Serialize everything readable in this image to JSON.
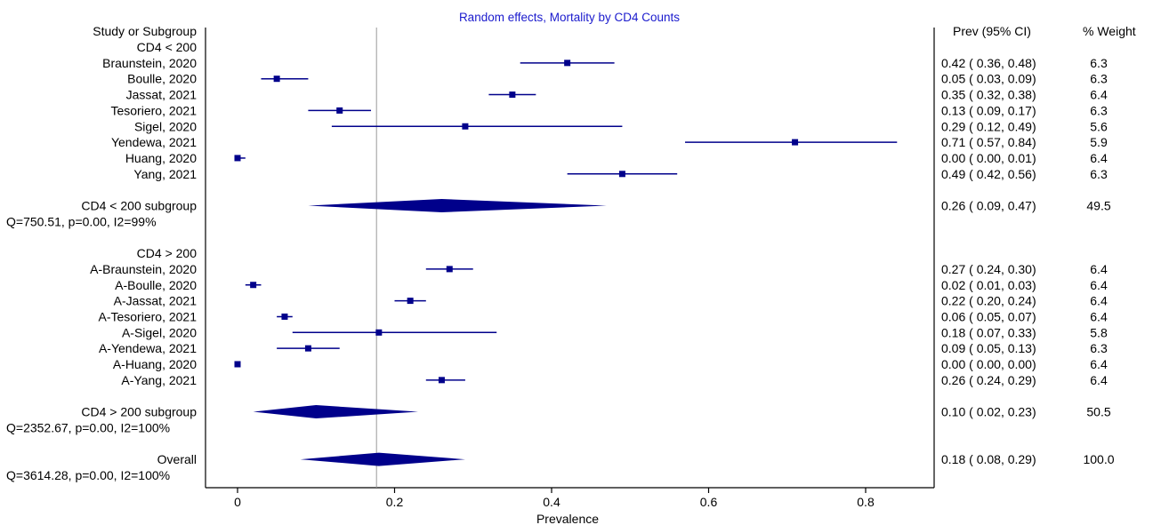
{
  "chart_data": {
    "type": "forest",
    "title": "Random effects, Mortality by CD4 Counts",
    "xlabel": "Prevalence",
    "xlim": [
      -0.04,
      0.88
    ],
    "xticks": [
      0,
      0.2,
      0.4,
      0.6,
      0.8
    ],
    "xtick_labels": [
      "0",
      "0.2",
      "0.4",
      "0.6",
      "0.8"
    ],
    "reference_line": 0.177,
    "columns": {
      "study": "Study or Subgroup",
      "estimate": "Prev (95% CI)",
      "weight": "% Weight"
    },
    "colors": {
      "marker": "#00008B",
      "title": "#1a1acd",
      "text": "#000000",
      "axis": "#000000",
      "refline": "#999999"
    },
    "rows": [
      {
        "kind": "group",
        "label": "CD4 < 200"
      },
      {
        "kind": "study",
        "label": "Braunstein, 2020",
        "est": 0.42,
        "lo": 0.36,
        "hi": 0.48,
        "ci_text": "0.42 ( 0.36, 0.48)",
        "weight": "6.3"
      },
      {
        "kind": "study",
        "label": "Boulle, 2020",
        "est": 0.05,
        "lo": 0.03,
        "hi": 0.09,
        "ci_text": "0.05 ( 0.03, 0.09)",
        "weight": "6.3"
      },
      {
        "kind": "study",
        "label": "Jassat, 2021",
        "est": 0.35,
        "lo": 0.32,
        "hi": 0.38,
        "ci_text": "0.35 ( 0.32, 0.38)",
        "weight": "6.4"
      },
      {
        "kind": "study",
        "label": "Tesoriero, 2021",
        "est": 0.13,
        "lo": 0.09,
        "hi": 0.17,
        "ci_text": "0.13 ( 0.09, 0.17)",
        "weight": "6.3"
      },
      {
        "kind": "study",
        "label": "Sigel, 2020",
        "est": 0.29,
        "lo": 0.12,
        "hi": 0.49,
        "ci_text": "0.29 ( 0.12, 0.49)",
        "weight": "5.6"
      },
      {
        "kind": "study",
        "label": "Yendewa, 2021",
        "est": 0.71,
        "lo": 0.57,
        "hi": 0.84,
        "ci_text": "0.71 ( 0.57, 0.84)",
        "weight": "5.9"
      },
      {
        "kind": "study",
        "label": "Huang, 2020",
        "est": 0.0,
        "lo": 0.0,
        "hi": 0.01,
        "ci_text": "0.00 ( 0.00, 0.01)",
        "weight": "6.4"
      },
      {
        "kind": "study",
        "label": "Yang, 2021",
        "est": 0.49,
        "lo": 0.42,
        "hi": 0.56,
        "ci_text": "0.49 ( 0.42, 0.56)",
        "weight": "6.3"
      },
      {
        "kind": "blank"
      },
      {
        "kind": "summary",
        "label": "CD4 < 200 subgroup",
        "est": 0.26,
        "lo": 0.09,
        "hi": 0.47,
        "ci_text": "0.26 ( 0.09, 0.47)",
        "weight": "49.5"
      },
      {
        "kind": "stat",
        "label": "Q=750.51, p=0.00, I2=99%"
      },
      {
        "kind": "blank"
      },
      {
        "kind": "group",
        "label": "CD4 > 200"
      },
      {
        "kind": "study",
        "label": "A-Braunstein, 2020",
        "est": 0.27,
        "lo": 0.24,
        "hi": 0.3,
        "ci_text": "0.27 ( 0.24, 0.30)",
        "weight": "6.4"
      },
      {
        "kind": "study",
        "label": "A-Boulle, 2020",
        "est": 0.02,
        "lo": 0.01,
        "hi": 0.03,
        "ci_text": "0.02 ( 0.01, 0.03)",
        "weight": "6.4"
      },
      {
        "kind": "study",
        "label": "A-Jassat, 2021",
        "est": 0.22,
        "lo": 0.2,
        "hi": 0.24,
        "ci_text": "0.22 ( 0.20, 0.24)",
        "weight": "6.4"
      },
      {
        "kind": "study",
        "label": "A-Tesoriero, 2021",
        "est": 0.06,
        "lo": 0.05,
        "hi": 0.07,
        "ci_text": "0.06 ( 0.05, 0.07)",
        "weight": "6.4"
      },
      {
        "kind": "study",
        "label": "A-Sigel, 2020",
        "est": 0.18,
        "lo": 0.07,
        "hi": 0.33,
        "ci_text": "0.18 ( 0.07, 0.33)",
        "weight": "5.8"
      },
      {
        "kind": "study",
        "label": "A-Yendewa, 2021",
        "est": 0.09,
        "lo": 0.05,
        "hi": 0.13,
        "ci_text": "0.09 ( 0.05, 0.13)",
        "weight": "6.3"
      },
      {
        "kind": "study",
        "label": "A-Huang, 2020",
        "est": 0.0,
        "lo": 0.0,
        "hi": 0.0,
        "ci_text": "0.00 ( 0.00, 0.00)",
        "weight": "6.4"
      },
      {
        "kind": "study",
        "label": "A-Yang, 2021",
        "est": 0.26,
        "lo": 0.24,
        "hi": 0.29,
        "ci_text": "0.26 ( 0.24, 0.29)",
        "weight": "6.4"
      },
      {
        "kind": "blank"
      },
      {
        "kind": "summary",
        "label": "CD4 > 200 subgroup",
        "est": 0.1,
        "lo": 0.02,
        "hi": 0.23,
        "ci_text": "0.10 ( 0.02, 0.23)",
        "weight": "50.5"
      },
      {
        "kind": "stat",
        "label": "Q=2352.67, p=0.00, I2=100%"
      },
      {
        "kind": "blank"
      },
      {
        "kind": "summary",
        "label": "Overall",
        "est": 0.18,
        "lo": 0.08,
        "hi": 0.29,
        "ci_text": "0.18 ( 0.08, 0.29)",
        "weight": "100.0"
      },
      {
        "kind": "stat",
        "label": "Q=3614.28, p=0.00, I2=100%"
      }
    ]
  }
}
